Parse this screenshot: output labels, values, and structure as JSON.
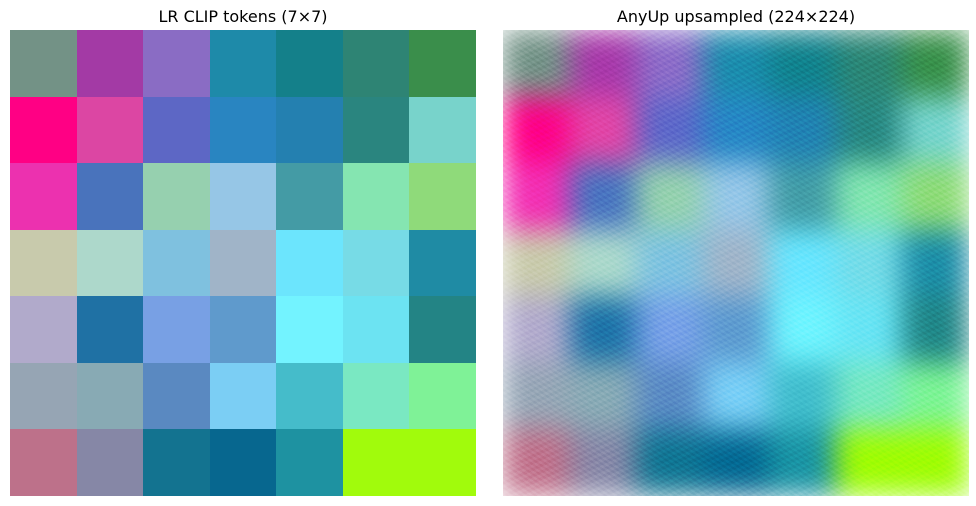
{
  "panels": [
    {
      "title": "LR CLIP tokens (7×7)",
      "grid": [
        [
          "#739286",
          "#A33AA5",
          "#8A6CC4",
          "#1E8AA9",
          "#14808A",
          "#2E8474",
          "#3A8E4B"
        ],
        [
          "#FF0084",
          "#DC46A3",
          "#5D67C5",
          "#2985C1",
          "#2480B0",
          "#2A857F",
          "#78D3CB"
        ],
        [
          "#EC31AF",
          "#4973BC",
          "#96D0AF",
          "#96C6E6",
          "#449BA5",
          "#85E5B1",
          "#8FDA7A"
        ],
        [
          "#C8CAAC",
          "#ADD8CB",
          "#7FC1DF",
          "#A0B4C8",
          "#6CE5FD",
          "#77DBE6",
          "#1F8BA4"
        ],
        [
          "#B1AACB",
          "#1F71A4",
          "#78A0E4",
          "#5F9ACC",
          "#73F3FF",
          "#6CE3F2",
          "#238485"
        ],
        [
          "#96A5B4",
          "#88AAB4",
          "#5A89C1",
          "#7BCEF4",
          "#45BCCA",
          "#7AE8C2",
          "#7FF297"
        ],
        [
          "#BD718A",
          "#8687A6",
          "#137390",
          "#07678F",
          "#1E92A1",
          "#A1FB0C",
          "#A1FB0C"
        ]
      ]
    },
    {
      "title": "AnyUp upsampled (224×224)"
    }
  ]
}
